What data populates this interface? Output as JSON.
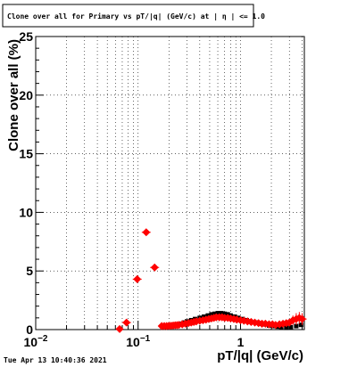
{
  "title": "Clone  over all for Primary vs pT/|q| (GeV/c) at |  η | <= 1.0",
  "timestamp": "Tue Apr 13 10:40:36 2021",
  "chart_data": {
    "type": "scatter",
    "title": "Clone  over all for Primary vs pT/|q| (GeV/c) at |  η | <= 1.0",
    "xlabel": "pT/|q| (GeV/c)",
    "ylabel": "Clone  over all (%)",
    "xscale": "log",
    "xlim": [
      0.01,
      4.2
    ],
    "ylim": [
      0,
      25
    ],
    "grid": true,
    "x_tick_labels": [
      {
        "value": 0.01,
        "base": "10",
        "exp": "−2"
      },
      {
        "value": 0.1,
        "base": "10",
        "exp": "−1"
      },
      {
        "value": 1,
        "base": "1",
        "exp": ""
      }
    ],
    "y_ticks": [
      0,
      5,
      10,
      15,
      20,
      25
    ],
    "series": [
      {
        "color": "#000000",
        "points": [
          [
            0.18,
            0.3
          ],
          [
            0.2,
            0.35
          ],
          [
            0.22,
            0.4
          ],
          [
            0.24,
            0.45
          ],
          [
            0.26,
            0.5
          ],
          [
            0.28,
            0.6
          ],
          [
            0.3,
            0.7
          ],
          [
            0.33,
            0.8
          ],
          [
            0.36,
            0.9
          ],
          [
            0.4,
            1.0
          ],
          [
            0.44,
            1.1
          ],
          [
            0.48,
            1.2
          ],
          [
            0.52,
            1.3
          ],
          [
            0.56,
            1.35
          ],
          [
            0.6,
            1.4
          ],
          [
            0.65,
            1.4
          ],
          [
            0.7,
            1.35
          ],
          [
            0.75,
            1.3
          ],
          [
            0.8,
            1.2
          ],
          [
            0.88,
            1.1
          ],
          [
            0.95,
            1.0
          ],
          [
            1.05,
            0.9
          ],
          [
            1.15,
            0.8
          ],
          [
            1.25,
            0.7
          ],
          [
            1.4,
            0.6
          ],
          [
            1.55,
            0.5
          ],
          [
            1.7,
            0.45
          ],
          [
            1.9,
            0.35
          ],
          [
            2.1,
            0.3
          ],
          [
            2.3,
            0.25
          ],
          [
            2.5,
            0.2
          ],
          [
            2.8,
            0.15
          ],
          [
            3.1,
            0.2
          ],
          [
            3.5,
            0.3
          ],
          [
            3.9,
            0.4
          ]
        ]
      },
      {
        "color": "#ff0000",
        "points": [
          [
            0.066,
            0.05,
            0
          ],
          [
            0.077,
            0.6,
            0.15
          ],
          [
            0.098,
            4.3,
            0.2
          ],
          [
            0.12,
            8.3,
            0.15
          ],
          [
            0.145,
            5.3,
            0.2
          ],
          [
            0.17,
            0.3,
            0
          ],
          [
            0.18,
            0.3,
            0
          ],
          [
            0.19,
            0.3,
            0
          ],
          [
            0.2,
            0.32,
            0
          ],
          [
            0.21,
            0.33,
            0
          ],
          [
            0.22,
            0.35,
            0
          ],
          [
            0.23,
            0.37,
            0
          ],
          [
            0.24,
            0.38,
            0
          ],
          [
            0.25,
            0.4,
            0
          ],
          [
            0.27,
            0.45,
            0
          ],
          [
            0.29,
            0.5,
            0
          ],
          [
            0.31,
            0.55,
            0
          ],
          [
            0.33,
            0.6,
            0
          ],
          [
            0.35,
            0.65,
            0
          ],
          [
            0.37,
            0.7,
            0
          ],
          [
            0.4,
            0.75,
            0
          ],
          [
            0.43,
            0.8,
            0
          ],
          [
            0.46,
            0.85,
            0
          ],
          [
            0.49,
            0.9,
            0
          ],
          [
            0.52,
            0.95,
            0
          ],
          [
            0.55,
            1.0,
            0
          ],
          [
            0.58,
            1.05,
            0
          ],
          [
            0.62,
            1.05,
            0
          ],
          [
            0.66,
            1.05,
            0
          ],
          [
            0.7,
            1.0,
            0
          ],
          [
            0.75,
            1.0,
            0
          ],
          [
            0.8,
            0.95,
            0
          ],
          [
            0.86,
            0.9,
            0
          ],
          [
            0.92,
            0.85,
            0
          ],
          [
            1.0,
            0.8,
            0
          ],
          [
            1.08,
            0.75,
            0
          ],
          [
            1.17,
            0.7,
            0
          ],
          [
            1.27,
            0.65,
            0
          ],
          [
            1.38,
            0.6,
            0
          ],
          [
            1.5,
            0.55,
            0
          ],
          [
            1.62,
            0.5,
            0.1
          ],
          [
            1.75,
            0.5,
            0.1
          ],
          [
            1.9,
            0.45,
            0.15
          ],
          [
            2.05,
            0.45,
            0.15
          ],
          [
            2.2,
            0.4,
            0.15
          ],
          [
            2.4,
            0.45,
            0.2
          ],
          [
            2.6,
            0.5,
            0.2
          ],
          [
            2.8,
            0.55,
            0.25
          ],
          [
            3.0,
            0.6,
            0.3
          ],
          [
            3.25,
            0.8,
            0.4
          ],
          [
            3.5,
            0.9,
            0.5
          ],
          [
            3.75,
            1.0,
            0.5
          ],
          [
            4.0,
            0.9,
            0.5
          ]
        ]
      }
    ]
  }
}
